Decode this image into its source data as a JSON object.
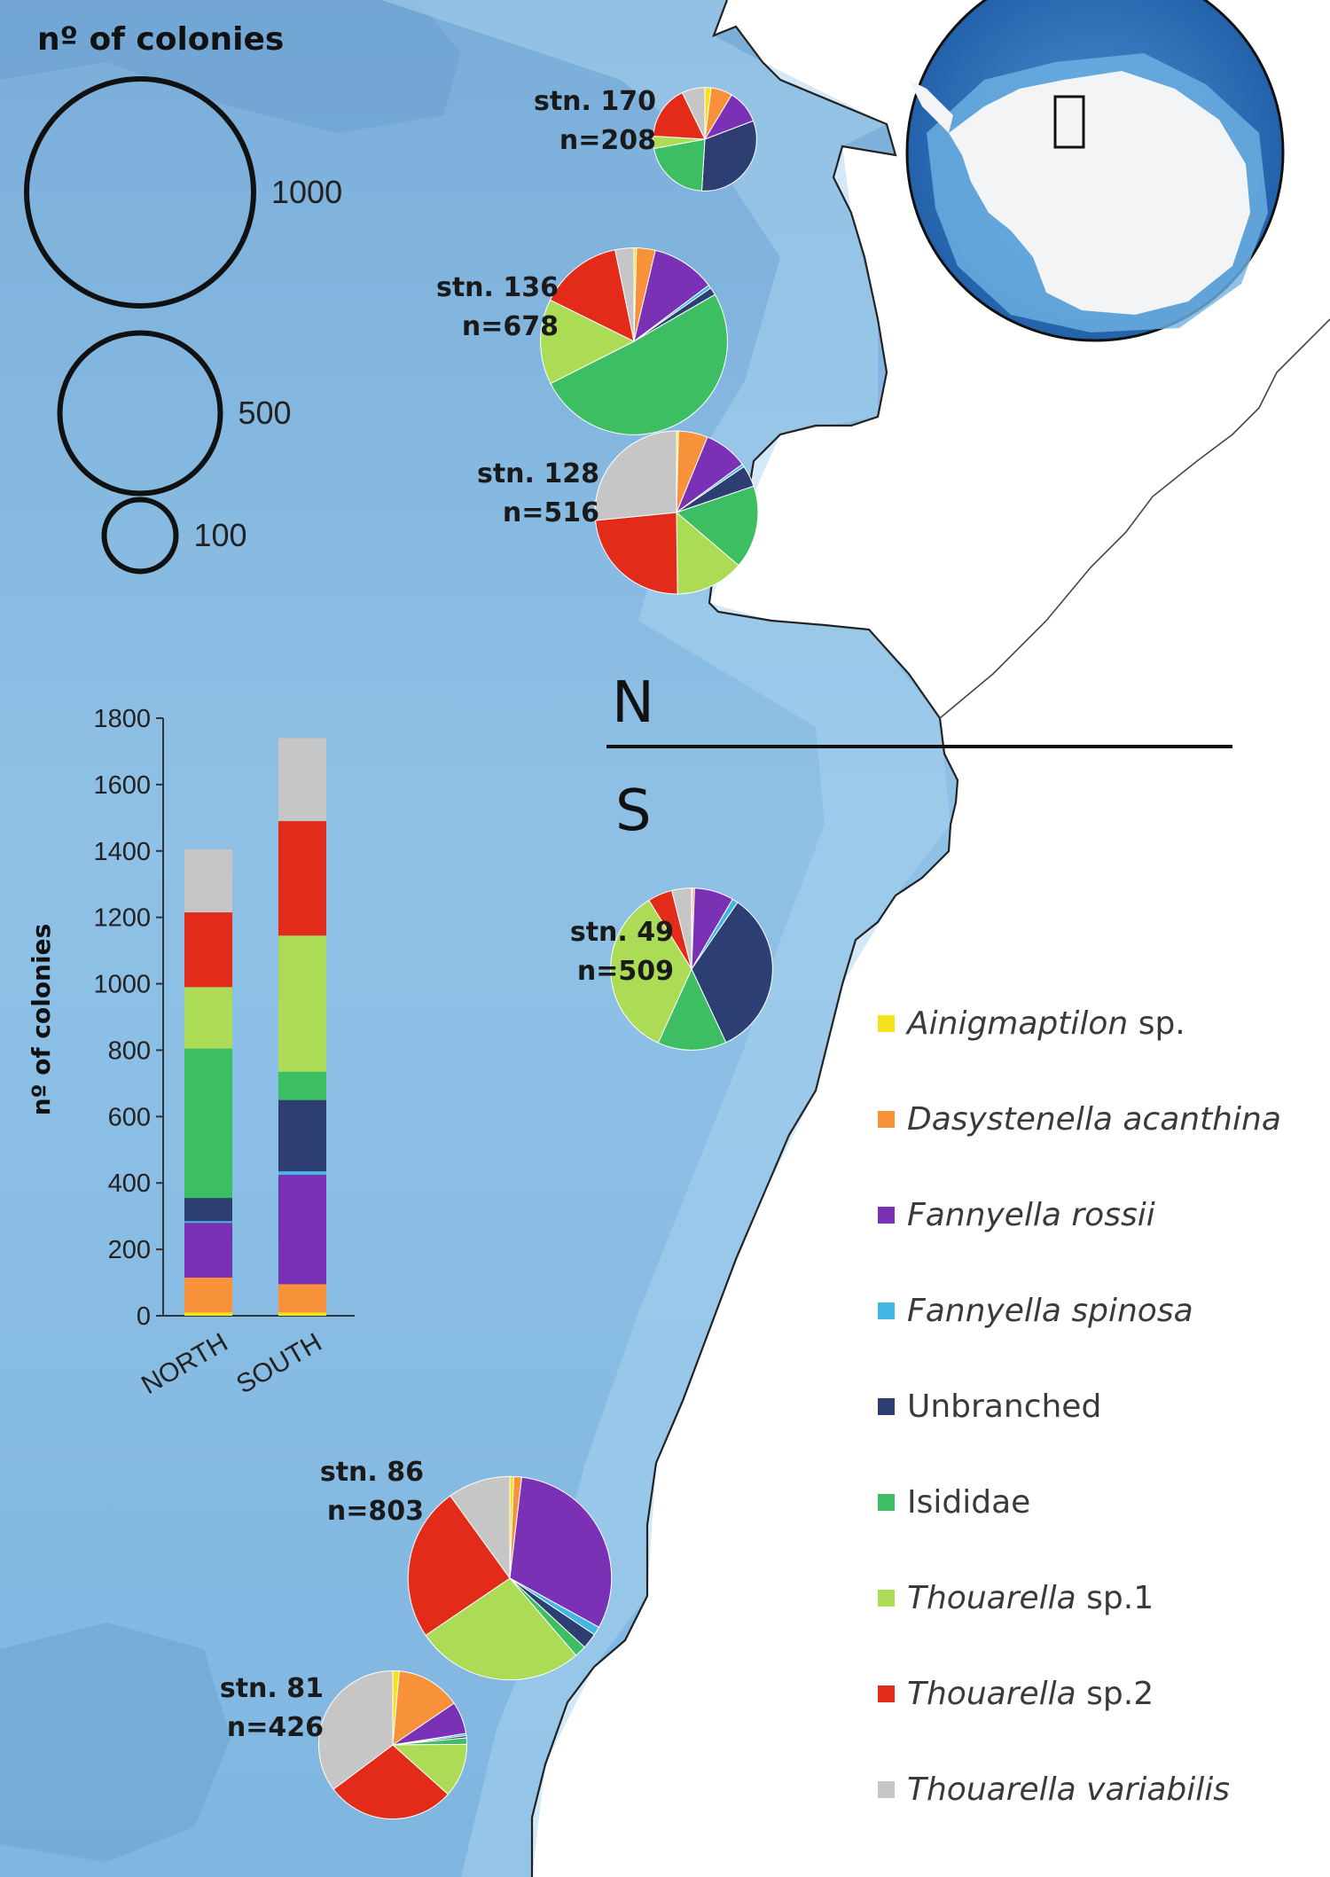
{
  "size_legend": {
    "title": "nº of colonies",
    "items": [
      {
        "value": 1000,
        "label": "1000"
      },
      {
        "value": 500,
        "label": "500"
      },
      {
        "value": 100,
        "label": "100"
      }
    ]
  },
  "divider": {
    "north": "N",
    "south": "S"
  },
  "taxa": [
    {
      "key": "ainigmaptilon",
      "name": "Ainigmaptilon",
      "suffix": " sp.",
      "color": "#f4e31c"
    },
    {
      "key": "dasystenella",
      "name": "Dasystenella acanthina",
      "suffix": "",
      "color": "#f7913a"
    },
    {
      "key": "f_rossii",
      "name": "Fannyella rossii",
      "suffix": "",
      "color": "#7a31b6"
    },
    {
      "key": "f_spinosa",
      "name": "Fannyella spinosa",
      "suffix": "",
      "color": "#44b6e3"
    },
    {
      "key": "unbranched",
      "name": "",
      "suffix": "Unbranched",
      "color": "#2d3f72"
    },
    {
      "key": "isididae",
      "name": "",
      "suffix": "Isididae",
      "color": "#3dbe62"
    },
    {
      "key": "thou1",
      "name": "Thouarella",
      "suffix": " sp.1",
      "color": "#acdb55"
    },
    {
      "key": "thou2",
      "name": "Thouarella",
      "suffix": " sp.2",
      "color": "#e22b18"
    },
    {
      "key": "thouvar",
      "name": "Thouarella variabilis",
      "suffix": "",
      "color": "#c6c6c6"
    }
  ],
  "chart_data": [
    {
      "type": "pie",
      "title": "",
      "stations": [
        {
          "label": "stn. 170",
          "n_label": "n=208",
          "n": 208,
          "values": {
            "ainigmaptilon": 4,
            "dasystenella": 14,
            "f_rossii": 22,
            "f_spinosa": 0,
            "unbranched": 66,
            "isididae": 44,
            "thou1": 8,
            "thou2": 35,
            "thouvar": 15
          }
        },
        {
          "label": "stn. 136",
          "n_label": "n=678",
          "n": 678,
          "values": {
            "ainigmaptilon": 3,
            "dasystenella": 22,
            "f_rossii": 75,
            "f_spinosa": 4,
            "unbranched": 9,
            "isididae": 345,
            "thou1": 100,
            "thou2": 98,
            "thouvar": 22
          }
        },
        {
          "label": "stn. 128",
          "n_label": "n=516",
          "n": 516,
          "values": {
            "ainigmaptilon": 2,
            "dasystenella": 30,
            "f_rossii": 45,
            "f_spinosa": 3,
            "unbranched": 22,
            "isididae": 85,
            "thou1": 70,
            "thou2": 122,
            "thouvar": 137
          }
        },
        {
          "label": "stn. 49",
          "n_label": "n=509",
          "n": 509,
          "values": {
            "ainigmaptilon": 1,
            "dasystenella": 2,
            "f_rossii": 40,
            "f_spinosa": 6,
            "unbranched": 170,
            "isididae": 70,
            "thou1": 175,
            "thou2": 25,
            "thouvar": 20
          }
        },
        {
          "label": "stn. 86",
          "n_label": "n=803",
          "n": 803,
          "values": {
            "ainigmaptilon": 5,
            "dasystenella": 10,
            "f_rossii": 250,
            "f_spinosa": 11,
            "unbranched": 20,
            "isididae": 15,
            "thou1": 215,
            "thou2": 197,
            "thouvar": 80
          }
        },
        {
          "label": "stn. 81",
          "n_label": "n=426",
          "n": 426,
          "values": {
            "ainigmaptilon": 6,
            "dasystenella": 60,
            "f_rossii": 30,
            "f_spinosa": 2,
            "unbranched": 2,
            "isididae": 6,
            "thou1": 50,
            "thou2": 120,
            "thouvar": 150
          }
        }
      ]
    },
    {
      "type": "bar",
      "stacked": true,
      "title": "",
      "categories": [
        "NORTH",
        "SOUTH"
      ],
      "ylabel": "nº of colonies",
      "xlabel": "",
      "ylim": [
        0,
        1800
      ],
      "yticks": [
        0,
        200,
        400,
        600,
        800,
        1000,
        1200,
        1400,
        1600,
        1800
      ],
      "series": [
        {
          "key": "ainigmaptilon",
          "values": [
            10,
            10
          ]
        },
        {
          "key": "dasystenella",
          "values": [
            105,
            85
          ]
        },
        {
          "key": "f_rossii",
          "values": [
            165,
            330
          ]
        },
        {
          "key": "f_spinosa",
          "values": [
            5,
            10
          ]
        },
        {
          "key": "unbranched",
          "values": [
            70,
            215
          ]
        },
        {
          "key": "isididae",
          "values": [
            450,
            85
          ]
        },
        {
          "key": "thou1",
          "values": [
            185,
            410
          ]
        },
        {
          "key": "thou2",
          "values": [
            225,
            345
          ]
        },
        {
          "key": "thouvar",
          "values": [
            190,
            250
          ]
        }
      ]
    }
  ]
}
